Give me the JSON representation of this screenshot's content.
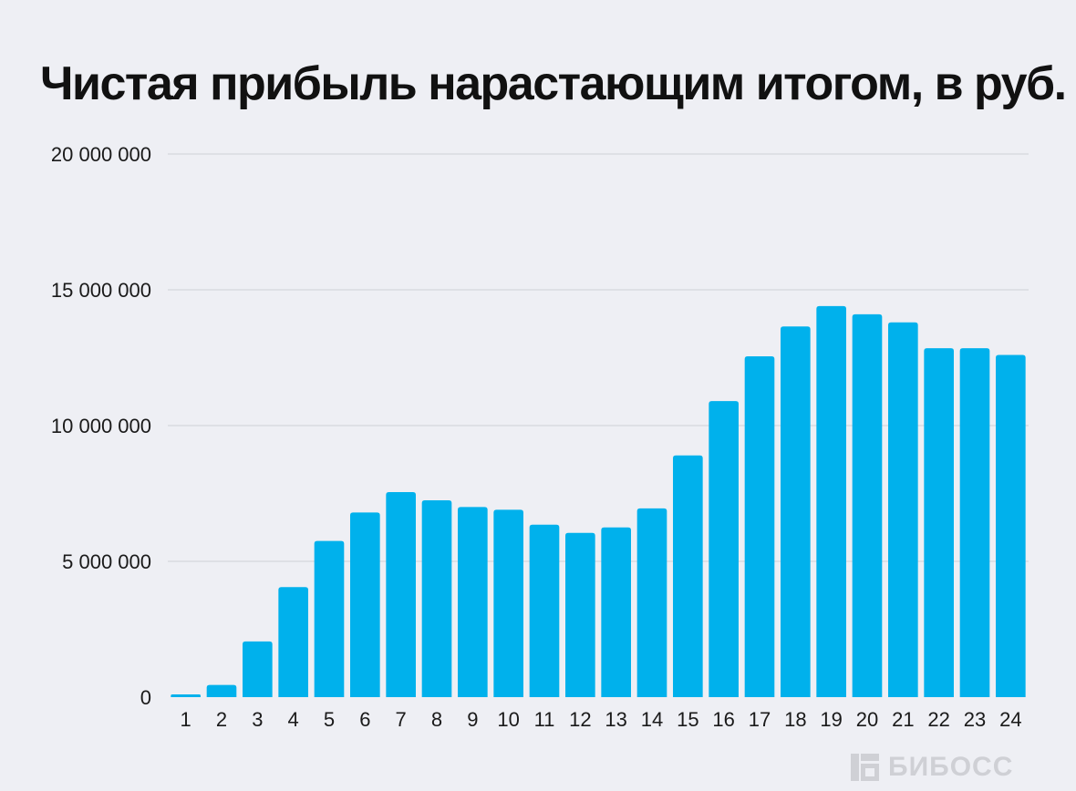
{
  "chart_data": {
    "type": "bar",
    "title": "Чистая прибыль нарастающим итогом, в руб.",
    "xlabel": "",
    "ylabel": "",
    "categories": [
      "1",
      "2",
      "3",
      "4",
      "5",
      "6",
      "7",
      "8",
      "9",
      "10",
      "11",
      "12",
      "13",
      "14",
      "15",
      "16",
      "17",
      "18",
      "19",
      "20",
      "21",
      "22",
      "23",
      "24"
    ],
    "values": [
      100000,
      450000,
      2050000,
      4050000,
      5750000,
      6800000,
      7550000,
      7250000,
      7000000,
      6900000,
      6350000,
      6050000,
      6250000,
      6950000,
      8900000,
      10900000,
      12550000,
      13650000,
      14400000,
      14100000,
      13800000,
      12850000,
      12850000,
      12600000
    ],
    "ylim": [
      0,
      20000000
    ],
    "yticks": [
      0,
      5000000,
      10000000,
      15000000,
      20000000
    ],
    "ytick_labels": [
      "0",
      "5 000 000",
      "10 000 000",
      "15 000 000",
      "20 000 000"
    ],
    "grid": true,
    "bar_color": "#00b1ec"
  },
  "colors": {
    "background": "#eeeff4",
    "gridline": "#cfd0d6",
    "watermark": "#cfd0d5"
  },
  "watermark": {
    "text": "БИБОСС",
    "icon": "biboss-logo-icon"
  }
}
